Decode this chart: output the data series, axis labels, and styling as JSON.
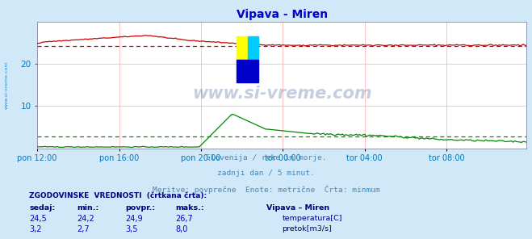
{
  "title": "Vipava - Miren",
  "title_color": "#0000cc",
  "bg_color": "#d0e8f8",
  "plot_bg_color": "#ffffff",
  "grid_color": "#ffaaaa",
  "border_color": "#8888aa",
  "tick_color": "#0077bb",
  "sidebar_text": "www.si-vreme.com",
  "footer_lines": [
    "Slovenija / reke in morje.",
    "zadnji dan / 5 minut.",
    "Meritve: povprečne  Enote: metrične  Črta: minmum"
  ],
  "footer_color": "#4488bb",
  "x_tick_labels": [
    "pon 12:00",
    "pon 16:00",
    "pon 20:00",
    "tor 00:00",
    "tor 04:00",
    "tor 08:00"
  ],
  "x_tick_positions": [
    0,
    48,
    96,
    144,
    192,
    240
  ],
  "ylim": [
    0,
    30
  ],
  "yticks": [
    10,
    20
  ],
  "n_points": 288,
  "temp_color": "#cc0000",
  "flow_color": "#008800",
  "temp_min_line": 24.2,
  "flow_min_line": 2.7,
  "watermark": "www.si-vreme.com",
  "watermark_color": "#1a3a8a",
  "watermark_alpha": 0.25,
  "legend_title": "Vipava – Miren",
  "table_header_color": "#000080",
  "table_data_color": "#0000cc",
  "table_headers": [
    "sedaj:",
    "min.:",
    "povpr.:",
    "maks.:"
  ],
  "row1_values": [
    "24,5",
    "24,2",
    "24,9",
    "26,7"
  ],
  "row2_values": [
    "3,2",
    "2,7",
    "3,5",
    "8,0"
  ],
  "temp_label": "temperatura[C]",
  "flow_label": "pretok[m3/s]",
  "hist_label": "ZGODOVINSKE  VREDNOSTI  (črtkana črta):",
  "hist_label_color": "#000080",
  "logo_yellow": "#ffff00",
  "logo_cyan": "#00ccff",
  "logo_blue": "#0000cc"
}
